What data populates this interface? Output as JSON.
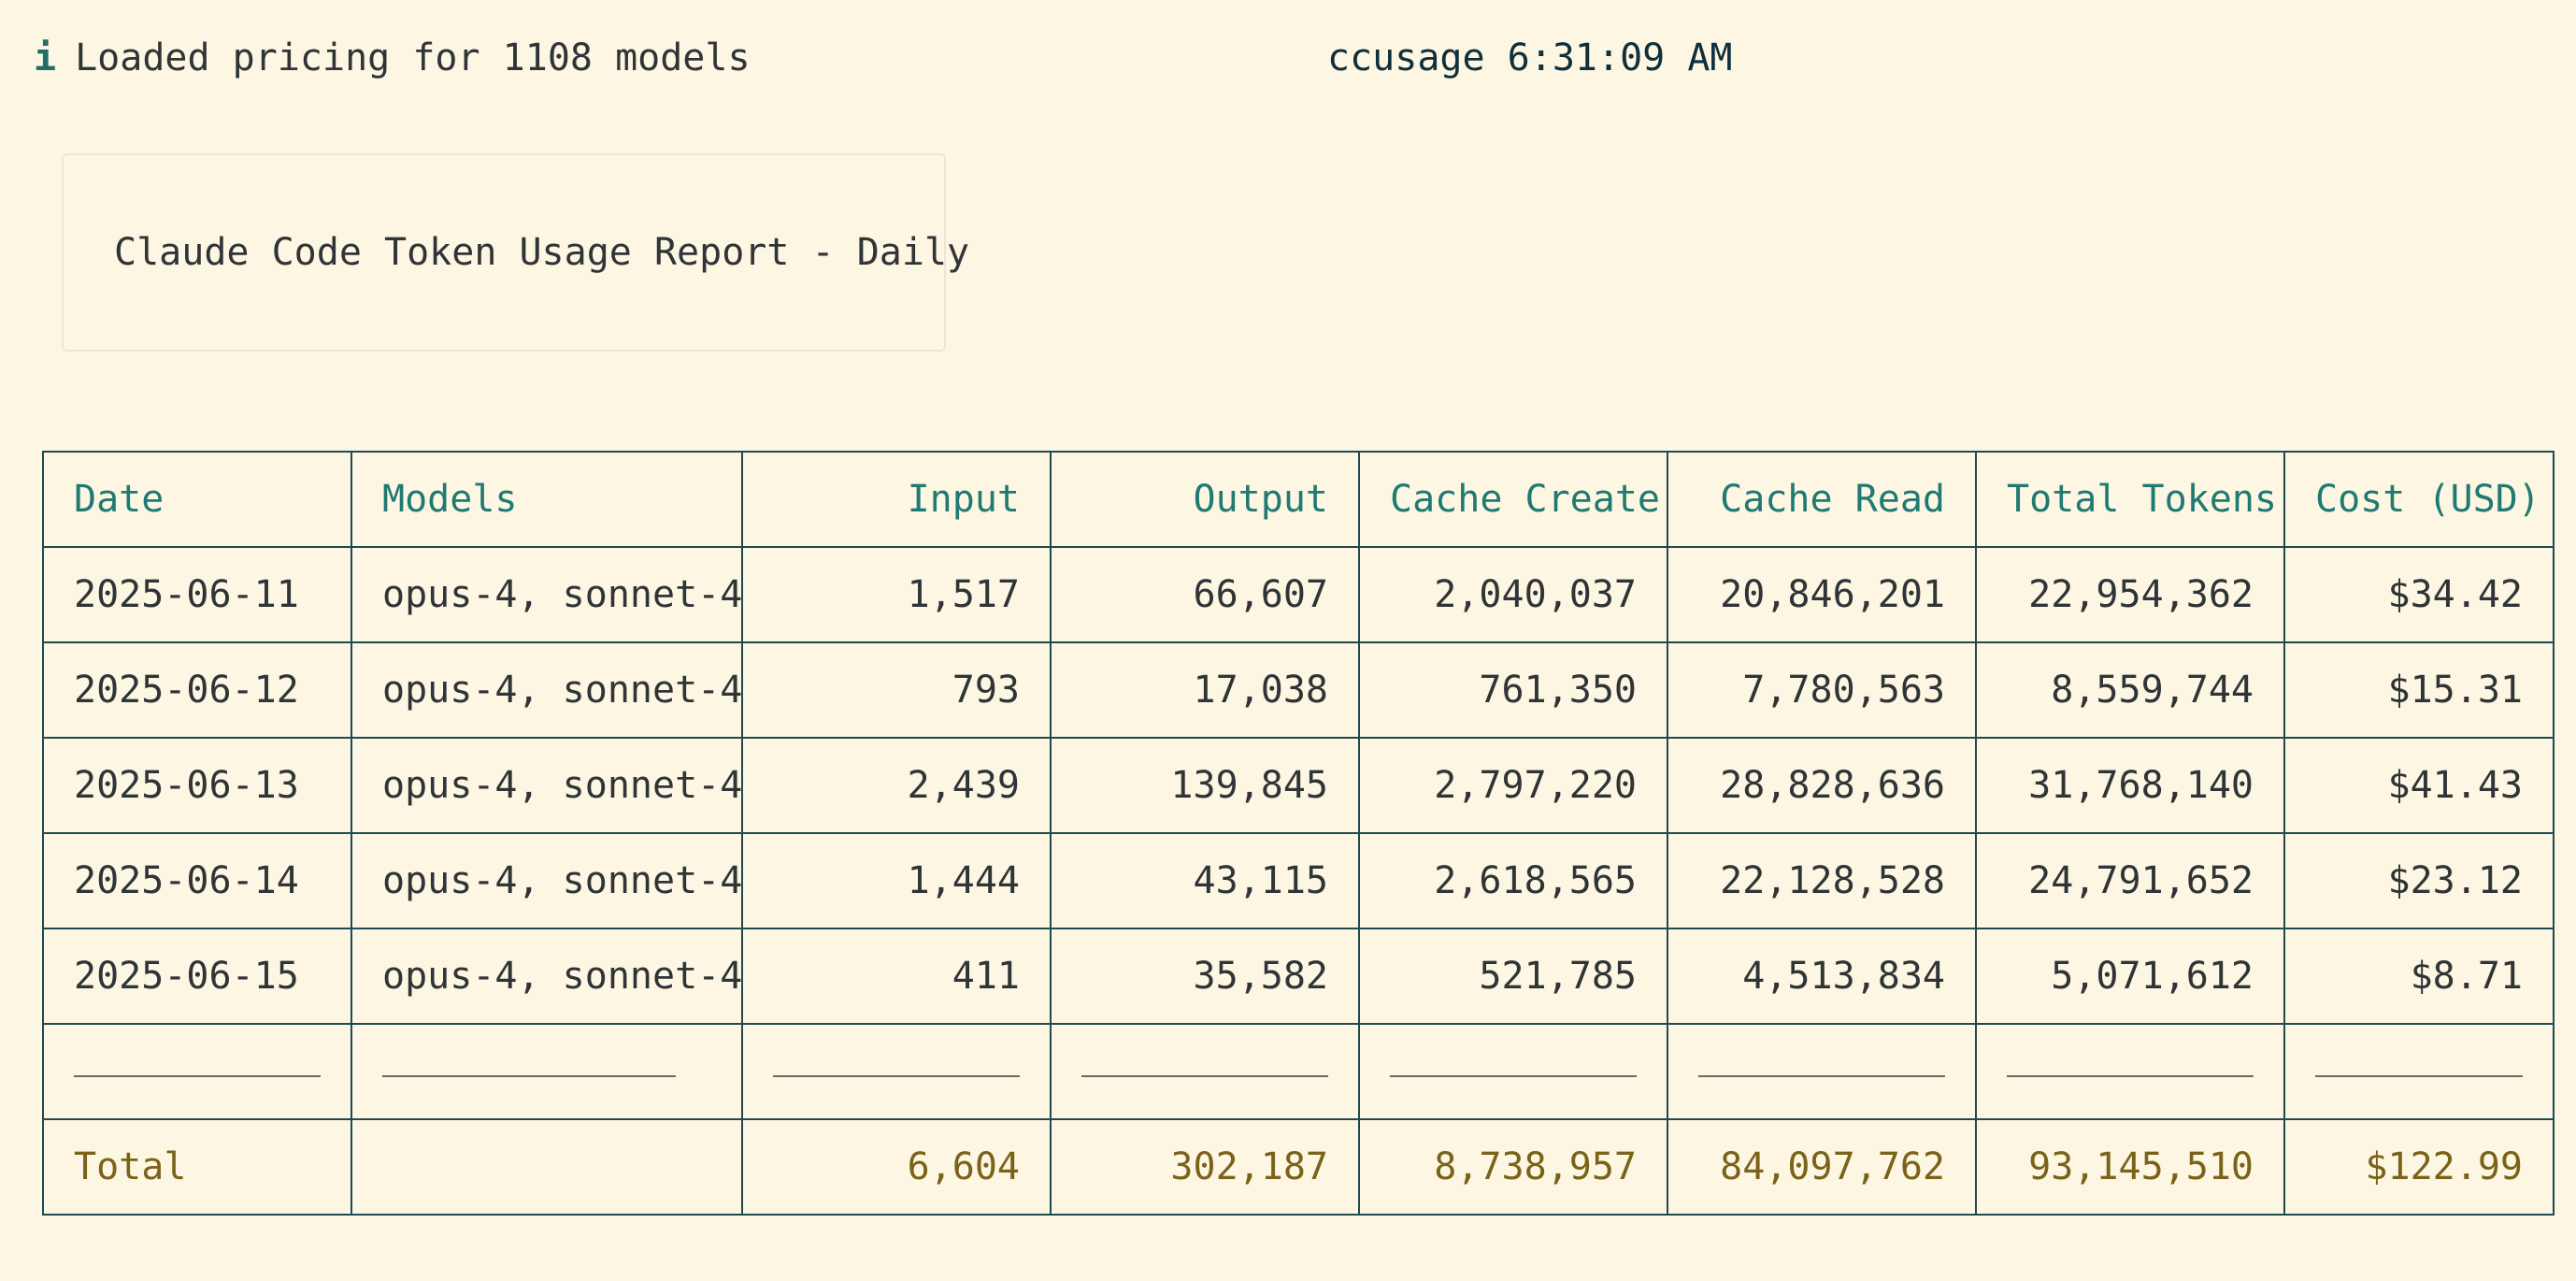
{
  "status": {
    "icon": "info-icon",
    "icon_glyph": "i",
    "message": "Loaded pricing for 1108 models"
  },
  "window": {
    "title": "ccusage 6:31:09 AM"
  },
  "report": {
    "title": "Claude Code Token Usage Report - Daily"
  },
  "table": {
    "headers": {
      "date": "Date",
      "models": "Models",
      "input": "Input",
      "output": "Output",
      "cache_create": "Cache Create",
      "cache_read": "Cache Read",
      "total_tokens": "Total Tokens",
      "cost": "Cost (USD)"
    },
    "rows": [
      {
        "date": "2025-06-11",
        "models": "opus-4, sonnet-4",
        "input": "1,517",
        "output": "66,607",
        "cache_create": "2,040,037",
        "cache_read": "20,846,201",
        "total_tokens": "22,954,362",
        "cost": "$34.42"
      },
      {
        "date": "2025-06-12",
        "models": "opus-4, sonnet-4",
        "input": "793",
        "output": "17,038",
        "cache_create": "761,350",
        "cache_read": "7,780,563",
        "total_tokens": "8,559,744",
        "cost": "$15.31"
      },
      {
        "date": "2025-06-13",
        "models": "opus-4, sonnet-4",
        "input": "2,439",
        "output": "139,845",
        "cache_create": "2,797,220",
        "cache_read": "28,828,636",
        "total_tokens": "31,768,140",
        "cost": "$41.43"
      },
      {
        "date": "2025-06-14",
        "models": "opus-4, sonnet-4",
        "input": "1,444",
        "output": "43,115",
        "cache_create": "2,618,565",
        "cache_read": "22,128,528",
        "total_tokens": "24,791,652",
        "cost": "$23.12"
      },
      {
        "date": "2025-06-15",
        "models": "opus-4, sonnet-4",
        "input": "411",
        "output": "35,582",
        "cache_create": "521,785",
        "cache_read": "4,513,834",
        "total_tokens": "5,071,612",
        "cost": "$8.71"
      }
    ],
    "total": {
      "label": "Total",
      "models": "",
      "input": "6,604",
      "output": "302,187",
      "cache_create": "8,738,957",
      "cache_read": "84,097,762",
      "total_tokens": "93,145,510",
      "cost": "$122.99"
    }
  },
  "colors": {
    "background": "#fdf6e3",
    "header_text": "#1f7a72",
    "total_text": "#7a6318",
    "border": "#1f4a52",
    "info_icon": "#1f6f68"
  }
}
